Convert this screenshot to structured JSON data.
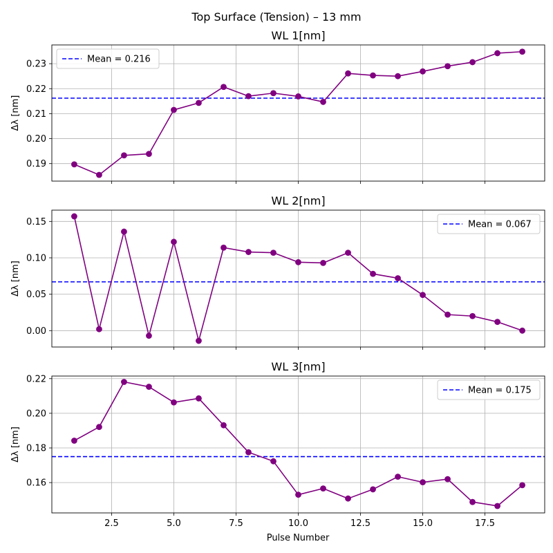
{
  "chart_data": {
    "type": "line",
    "suptitle": "Top Surface (Tension) – 13 mm",
    "xlabel": "Pulse Number",
    "x": [
      1,
      2,
      3,
      4,
      5,
      6,
      7,
      8,
      9,
      10,
      11,
      12,
      13,
      14,
      15,
      16,
      17,
      18,
      19
    ],
    "xlim": [
      0.1,
      19.9
    ],
    "xticks": [
      2.5,
      5.0,
      7.5,
      10.0,
      12.5,
      15.0,
      17.5
    ],
    "xtick_labels": [
      "2.5",
      "5.0",
      "7.5",
      "10.0",
      "12.5",
      "15.0",
      "17.5"
    ],
    "grid": true,
    "line_color": "#800080",
    "mean_color": "#0000ff",
    "panels": [
      {
        "title": "WL 1[nm]",
        "ylabel": "Δλ [nm]",
        "ylim": [
          0.183,
          0.2375
        ],
        "yticks": [
          0.19,
          0.2,
          0.21,
          0.22,
          0.23
        ],
        "ytick_labels": [
          "0.19",
          "0.20",
          "0.21",
          "0.22",
          "0.23"
        ],
        "values": [
          0.1897,
          0.1855,
          0.1933,
          0.1939,
          0.2115,
          0.2143,
          0.2207,
          0.217,
          0.2182,
          0.2169,
          0.2147,
          0.2261,
          0.2253,
          0.225,
          0.2269,
          0.229,
          0.2306,
          0.2342,
          0.2348
        ],
        "mean": 0.2162,
        "legend_label": "Mean = 0.216",
        "legend_position": "upper-left"
      },
      {
        "title": "WL 2[nm]",
        "ylabel": "Δλ [nm]",
        "ylim": [
          -0.0225,
          0.1655
        ],
        "yticks": [
          0.0,
          0.05,
          0.1,
          0.15
        ],
        "ytick_labels": [
          "0.00",
          "0.05",
          "0.10",
          "0.15"
        ],
        "values": [
          0.157,
          0.002,
          0.136,
          -0.007,
          0.122,
          -0.014,
          0.114,
          0.108,
          0.107,
          0.094,
          0.093,
          0.107,
          0.078,
          0.072,
          0.049,
          0.022,
          0.02,
          0.012,
          0.0
        ],
        "mean": 0.067,
        "legend_label": "Mean = 0.067",
        "legend_position": "upper-right"
      },
      {
        "title": "WL 3[nm]",
        "ylabel": "Δλ [nm]",
        "ylim": [
          0.1425,
          0.2215
        ],
        "yticks": [
          0.16,
          0.18,
          0.2,
          0.22
        ],
        "ytick_labels": [
          "0.16",
          "0.18",
          "0.20",
          "0.22"
        ],
        "values": [
          0.1842,
          0.1921,
          0.2181,
          0.2153,
          0.2063,
          0.2086,
          0.1931,
          0.1775,
          0.1723,
          0.153,
          0.1566,
          0.1508,
          0.1561,
          0.1634,
          0.1602,
          0.162,
          0.1488,
          0.1465,
          0.1585
        ],
        "mean": 0.175,
        "legend_label": "Mean = 0.175",
        "legend_position": "upper-right"
      }
    ]
  }
}
